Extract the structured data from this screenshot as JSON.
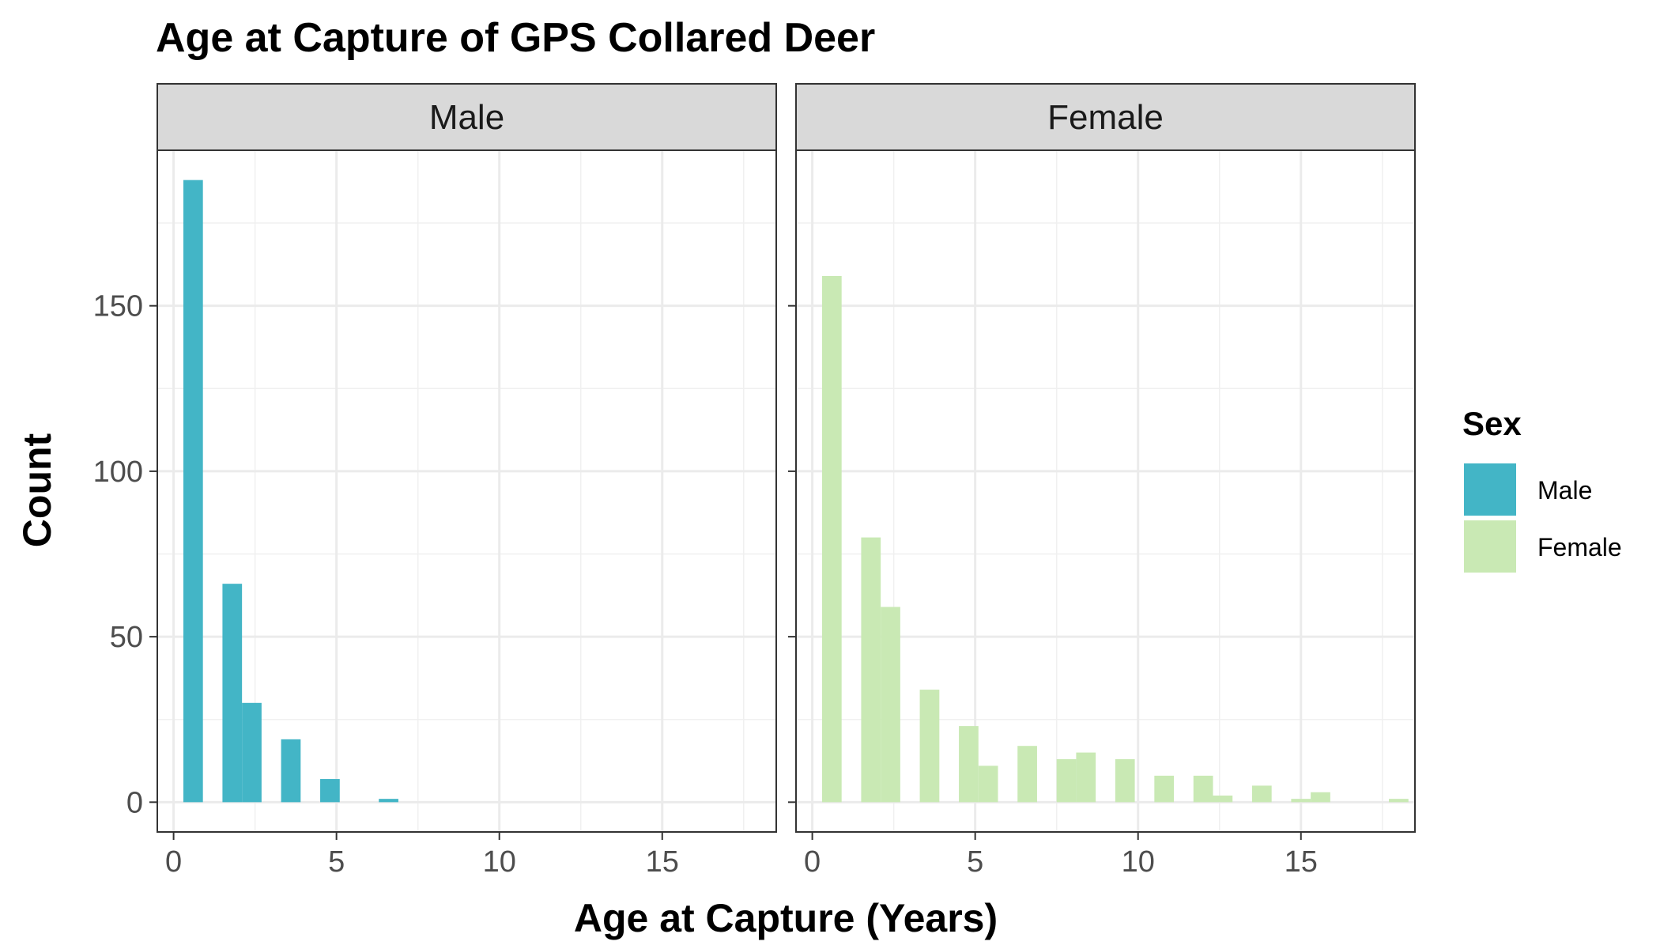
{
  "chart_data": {
    "type": "bar",
    "title": "Age at Capture of GPS Collared Deer",
    "xlabel": "Age at Capture (Years)",
    "ylabel": "Count",
    "xlim": [
      -0.5,
      18.5
    ],
    "ylim": [
      -9,
      197
    ],
    "x_ticks": [
      0,
      5,
      10,
      15
    ],
    "y_ticks": [
      0,
      50,
      100,
      150
    ],
    "bin_width": 0.6,
    "grid": true,
    "legend": {
      "title": "Sex",
      "position": "right"
    },
    "panels": [
      "Male",
      "Female"
    ],
    "series": [
      {
        "name": "Male",
        "color": "#43b5c6",
        "bins": [
          {
            "x": 0.6,
            "count": 188
          },
          {
            "x": 1.8,
            "count": 66
          },
          {
            "x": 2.4,
            "count": 30
          },
          {
            "x": 3.6,
            "count": 19
          },
          {
            "x": 4.8,
            "count": 7
          },
          {
            "x": 6.6,
            "count": 1
          }
        ]
      },
      {
        "name": "Female",
        "color": "#c9e9b4",
        "bins": [
          {
            "x": 0.6,
            "count": 159
          },
          {
            "x": 1.8,
            "count": 80
          },
          {
            "x": 2.4,
            "count": 59
          },
          {
            "x": 3.6,
            "count": 34
          },
          {
            "x": 4.8,
            "count": 23
          },
          {
            "x": 5.4,
            "count": 11
          },
          {
            "x": 6.6,
            "count": 17
          },
          {
            "x": 7.8,
            "count": 13
          },
          {
            "x": 8.4,
            "count": 15
          },
          {
            "x": 9.6,
            "count": 13
          },
          {
            "x": 10.8,
            "count": 8
          },
          {
            "x": 12.0,
            "count": 8
          },
          {
            "x": 12.6,
            "count": 2
          },
          {
            "x": 13.8,
            "count": 5
          },
          {
            "x": 15.0,
            "count": 1
          },
          {
            "x": 15.6,
            "count": 3
          },
          {
            "x": 18.0,
            "count": 1
          }
        ]
      }
    ]
  }
}
